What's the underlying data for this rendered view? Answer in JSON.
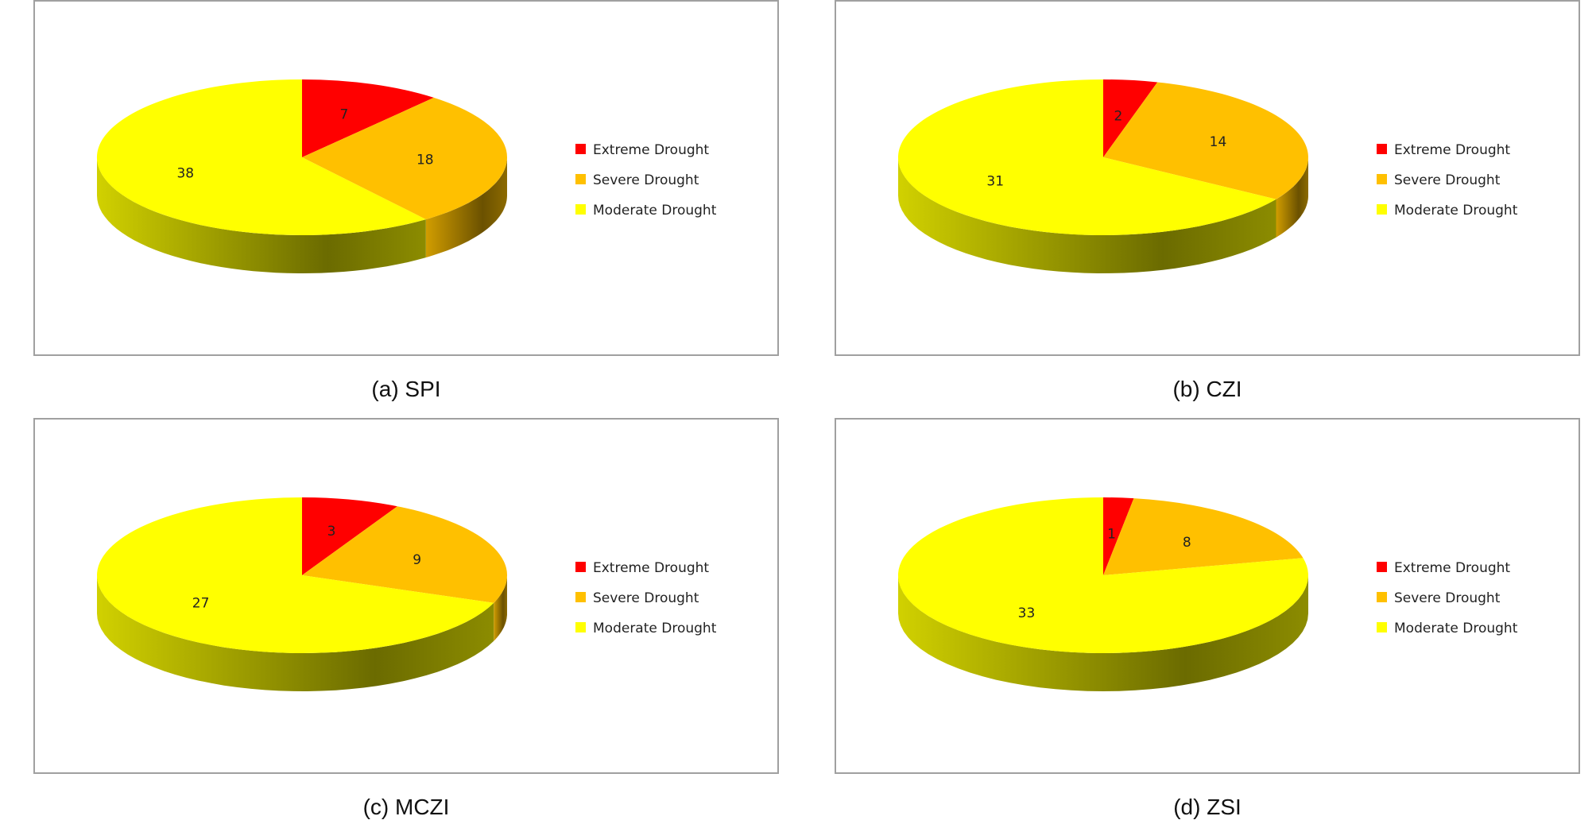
{
  "colors": {
    "extreme": "#ff0000",
    "severe": "#ffc000",
    "moderate": "#ffff00",
    "background": "#ffffff",
    "border": "#a0a0a0"
  },
  "chart_data": [
    {
      "type": "pie",
      "style": "3d",
      "caption": "(a) SPI",
      "categories": [
        "Extreme Drought",
        "Severe Drought",
        "Moderate Drought"
      ],
      "values": [
        7,
        18,
        38
      ],
      "legend_position": "right"
    },
    {
      "type": "pie",
      "style": "3d",
      "caption": "(b) CZI",
      "categories": [
        "Extreme Drought",
        "Severe Drought",
        "Moderate Drought"
      ],
      "values": [
        2,
        14,
        31
      ],
      "legend_position": "right"
    },
    {
      "type": "pie",
      "style": "3d",
      "caption": "(c) MCZI",
      "categories": [
        "Extreme Drought",
        "Severe Drought",
        "Moderate Drought"
      ],
      "values": [
        3,
        9,
        27
      ],
      "legend_position": "right"
    },
    {
      "type": "pie",
      "style": "3d",
      "caption": "(d) ZSI",
      "categories": [
        "Extreme Drought",
        "Severe Drought",
        "Moderate Drought"
      ],
      "values": [
        1,
        8,
        33
      ],
      "legend_position": "right"
    }
  ]
}
